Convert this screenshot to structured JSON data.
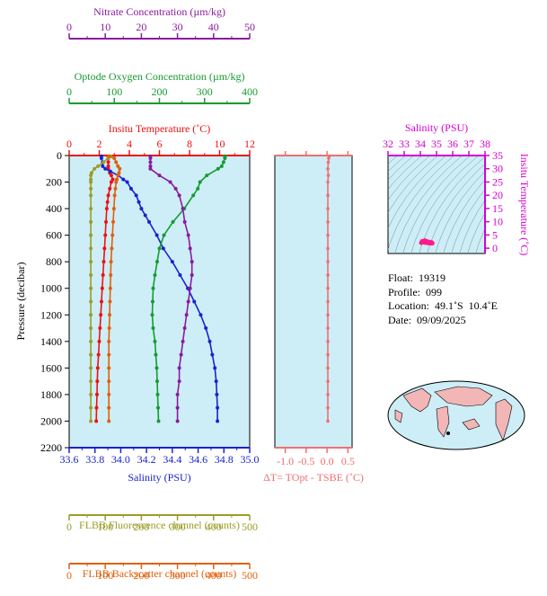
{
  "colors": {
    "nitrate": "#8b1a9e",
    "oxygen": "#179a31",
    "temperature": "#ee1111",
    "salinity": "#1a22d0",
    "fluorescence": "#9c9c28",
    "backscatter": "#e0600c",
    "panel_bg": "#cdeef7",
    "delta_t": "#ef6f6f",
    "ts_trace": "#ff1a8c",
    "land": "#f2b6b6",
    "ocean": "#cdeef7"
  },
  "info": {
    "float": "Float:  19319",
    "profile": "Profile:  099",
    "location": "Location:  49.1˚S  10.4˚E",
    "date": "Date:  09/09/2025"
  },
  "chart_data": [
    {
      "type": "line",
      "panel": "main-profile-panel",
      "ylabel": "Pressure (decibar)",
      "ylim": [
        2200,
        0
      ],
      "y_ticks": [
        "0",
        "200",
        "400",
        "600",
        "800",
        "1000",
        "1200",
        "1400",
        "1600",
        "1800",
        "2000",
        "2200"
      ],
      "grid": false,
      "axes": {
        "nitrate": {
          "title": "Nitrate Concentration (µm/kg)",
          "range": [
            0,
            50
          ],
          "ticks": [
            "0",
            "10",
            "20",
            "30",
            "40",
            "50"
          ]
        },
        "oxygen": {
          "title": "Optode Oxygen Concentration (µm/kg)",
          "range": [
            0,
            400
          ],
          "ticks": [
            "0",
            "100",
            "200",
            "300",
            "400"
          ]
        },
        "temperature": {
          "title": "Insitu Temperature (˚C)",
          "range": [
            0,
            12
          ],
          "ticks": [
            "0",
            "2",
            "4",
            "6",
            "8",
            "10",
            "12"
          ]
        },
        "salinity": {
          "title": "Salinity (PSU)",
          "range": [
            33.6,
            35.0
          ],
          "ticks": [
            "33.6",
            "33.8",
            "34.0",
            "34.2",
            "34.4",
            "34.6",
            "34.8",
            "35.0"
          ]
        },
        "fluorescence": {
          "title": "FLBB Fluorescence channel (counts)",
          "range": [
            0,
            500
          ],
          "ticks": [
            "0",
            "100",
            "200",
            "300",
            "400",
            "500"
          ]
        },
        "backscatter": {
          "title": "FLBB Backscatter channel (counts)",
          "range": [
            0,
            500
          ],
          "ticks": [
            "0",
            "100",
            "200",
            "300",
            "400",
            "500"
          ]
        }
      },
      "series": [
        {
          "key": "temperature",
          "pressure": [
            5,
            20,
            50,
            80,
            100,
            130,
            150,
            180,
            200,
            250,
            300,
            350,
            400,
            500,
            600,
            700,
            800,
            900,
            1000,
            1100,
            1200,
            1300,
            1400,
            1500,
            1600,
            1700,
            1800,
            1900,
            2000
          ],
          "values": [
            2.6,
            2.6,
            2.6,
            2.6,
            2.6,
            2.7,
            2.8,
            2.9,
            2.8,
            2.7,
            2.6,
            2.55,
            2.5,
            2.45,
            2.4,
            2.35,
            2.3,
            2.25,
            2.2,
            2.15,
            2.1,
            2.05,
            2.0,
            1.95,
            1.9,
            1.87,
            1.85,
            1.82,
            1.8
          ]
        },
        {
          "key": "salinity",
          "pressure": [
            5,
            20,
            50,
            80,
            100,
            120,
            150,
            180,
            200,
            250,
            300,
            350,
            400,
            450,
            500,
            600,
            700,
            800,
            900,
            1000,
            1100,
            1200,
            1300,
            1400,
            1500,
            1600,
            1700,
            1800,
            1900,
            2000
          ],
          "values": [
            33.85,
            33.85,
            33.86,
            33.86,
            33.88,
            33.92,
            33.98,
            34.02,
            34.05,
            34.08,
            34.12,
            34.14,
            34.16,
            34.19,
            34.22,
            34.28,
            34.33,
            34.4,
            34.46,
            34.52,
            34.57,
            34.62,
            34.66,
            34.69,
            34.71,
            34.73,
            34.74,
            34.745,
            34.75,
            34.75
          ]
        },
        {
          "key": "oxygen",
          "pressure": [
            5,
            20,
            50,
            80,
            100,
            150,
            200,
            250,
            300,
            400,
            500,
            600,
            700,
            800,
            900,
            1000,
            1100,
            1200,
            1300,
            1400,
            1500,
            1600,
            1700,
            1800,
            1900,
            2000
          ],
          "values": [
            345,
            345,
            342,
            338,
            330,
            305,
            290,
            285,
            275,
            255,
            230,
            210,
            200,
            195,
            190,
            186,
            185,
            184,
            186,
            190,
            192,
            194,
            195,
            196,
            197,
            198
          ]
        },
        {
          "key": "nitrate",
          "pressure": [
            5,
            20,
            50,
            80,
            100,
            150,
            200,
            250,
            300,
            400,
            500,
            600,
            700,
            800,
            900,
            1000,
            1100,
            1200,
            1300,
            1400,
            1500,
            1600,
            1700,
            1800,
            1900,
            2000
          ],
          "values": [
            22.5,
            22.5,
            22.5,
            22.5,
            22.5,
            25,
            28,
            29.5,
            30.5,
            31.5,
            32,
            33,
            33.5,
            34,
            34,
            33.5,
            33,
            32.5,
            32,
            31.5,
            31,
            30.5,
            30.5,
            30,
            30,
            30
          ]
        },
        {
          "key": "fluorescence",
          "pressure": [
            5,
            20,
            50,
            80,
            100,
            130,
            150,
            180,
            200,
            250,
            300,
            400,
            500,
            600,
            700,
            800,
            900,
            1000,
            1100,
            1200,
            1300,
            1400,
            1500,
            1600,
            1700,
            1800,
            1900,
            2000
          ],
          "values": [
            115,
            108,
            95,
            80,
            70,
            62,
            60,
            60,
            60,
            60,
            60,
            60,
            60,
            60,
            60,
            60,
            60,
            60,
            60,
            60,
            60,
            60,
            60,
            60,
            60,
            60,
            60,
            60
          ]
        },
        {
          "key": "backscatter",
          "pressure": [
            5,
            20,
            50,
            80,
            100,
            130,
            150,
            180,
            200,
            250,
            300,
            400,
            500,
            600,
            700,
            800,
            900,
            1000,
            1100,
            1200,
            1300,
            1400,
            1500,
            1600,
            1700,
            1800,
            1900,
            2000
          ],
          "values": [
            110,
            125,
            130,
            135,
            140,
            138,
            135,
            132,
            130,
            128,
            126,
            124,
            122,
            120,
            118,
            116,
            115,
            114,
            113,
            112,
            111,
            110,
            110,
            110,
            110,
            110,
            110,
            110
          ]
        }
      ]
    },
    {
      "type": "line",
      "panel": "delta-t-panel",
      "xlabel": "ΔT= TOpt - TSBE (˚C)",
      "xlim": [
        -1.25,
        0.6
      ],
      "x_ticks": [
        "-1.0",
        "-0.5",
        "0.0",
        "0.5"
      ],
      "ylim": [
        2200,
        0
      ],
      "series": [
        {
          "name": "",
          "pressure": [
            5,
            20,
            50,
            100,
            150,
            200,
            300,
            400,
            500,
            600,
            700,
            800,
            900,
            1000,
            1100,
            1200,
            1300,
            1400,
            1500,
            1600,
            1700,
            1800,
            1900,
            2000
          ],
          "values": [
            0.05,
            0.04,
            0.03,
            0.02,
            0.03,
            0.02,
            0.02,
            0.02,
            0.02,
            0.02,
            0.02,
            0.02,
            0.02,
            0.02,
            0.02,
            0.02,
            0.02,
            0.02,
            0.02,
            0.02,
            0.02,
            0.02,
            0.02,
            0.02
          ]
        }
      ]
    },
    {
      "type": "scatter",
      "panel": "ts-diagram",
      "xlabel": "Salinity (PSU)",
      "ylabel": "Insitu Temperature (˚C)",
      "xlim": [
        32,
        38
      ],
      "ylim": [
        -2,
        35
      ],
      "x_ticks": [
        "32",
        "33",
        "34",
        "35",
        "36",
        "37",
        "38"
      ],
      "y_ticks": [
        "0",
        "5",
        "10",
        "15",
        "20",
        "25",
        "30",
        "35"
      ],
      "series": [
        {
          "name": "",
          "x": [
            34.05,
            34.1,
            34.2,
            34.3,
            34.4,
            34.5,
            34.6,
            34.7,
            34.72,
            34.75,
            34.7,
            34.6,
            34.5,
            34.4,
            34.3,
            34.2,
            34.1
          ],
          "y": [
            2.0,
            2.6,
            2.8,
            2.9,
            2.6,
            2.4,
            2.3,
            2.2,
            2.0,
            1.9,
            1.8,
            1.85,
            1.9,
            2.0,
            2.1,
            2.2,
            2.3
          ]
        }
      ]
    }
  ]
}
